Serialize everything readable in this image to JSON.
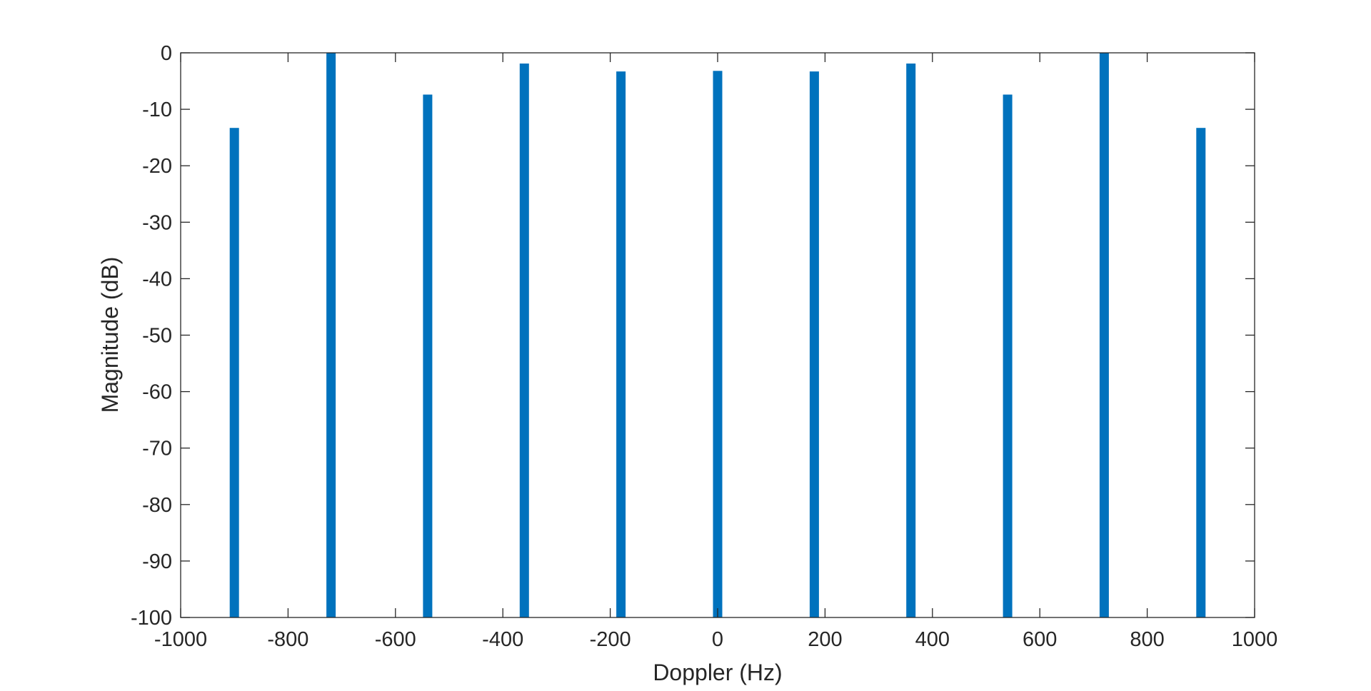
{
  "chart_data": {
    "type": "bar",
    "title": "",
    "xlabel": "Doppler (Hz)",
    "ylabel": "Magnitude (dB)",
    "xlim": [
      -1000,
      1000
    ],
    "ylim": [
      -100,
      0
    ],
    "x_ticks": [
      -1000,
      -800,
      -600,
      -400,
      -200,
      0,
      200,
      400,
      600,
      800,
      1000
    ],
    "x_tick_labels": [
      "-1000",
      "-800",
      "-600",
      "-400",
      "-200",
      "0",
      "200",
      "400",
      "600",
      "800",
      "1000"
    ],
    "y_ticks": [
      0,
      -10,
      -20,
      -30,
      -40,
      -50,
      -60,
      -70,
      -80,
      -90,
      -100
    ],
    "y_tick_labels": [
      "0",
      "-10",
      "-20",
      "-30",
      "-40",
      "-50",
      "-60",
      "-70",
      "-80",
      "-90",
      "-100"
    ],
    "grid": false,
    "legend": "none",
    "bar_color": "#0072BD",
    "series": [
      {
        "x": [
          -900,
          -720,
          -540,
          -360,
          -180,
          0,
          180,
          360,
          540,
          720,
          900
        ],
        "values": [
          -13.3,
          0,
          -7.4,
          -1.9,
          -3.3,
          -3.2,
          -3.3,
          -1.9,
          -7.4,
          0,
          -13.3
        ]
      }
    ]
  }
}
